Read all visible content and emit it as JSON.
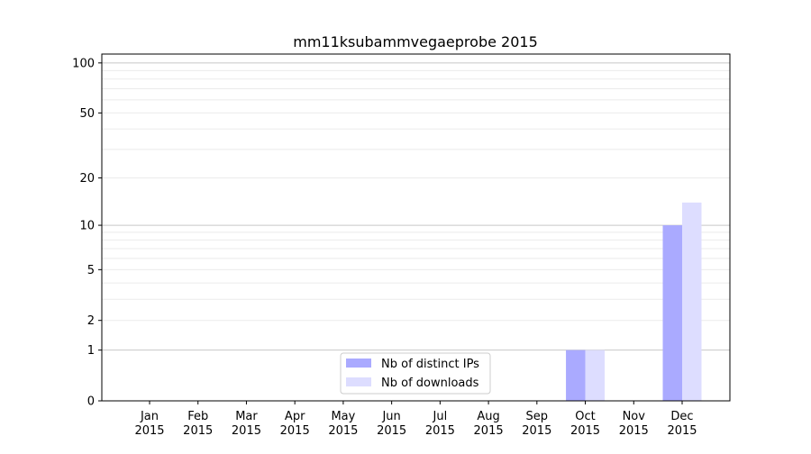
{
  "chart_data": {
    "type": "bar",
    "title": "mm11ksubammvegaeprobe 2015",
    "xlabel": "",
    "ylabel": "",
    "yscale": "symlog",
    "ylim": [
      0,
      113
    ],
    "yticks": [
      0,
      1,
      2,
      5,
      10,
      20,
      50,
      100
    ],
    "ytick_labels": [
      "0",
      "1",
      "2",
      "5",
      "10",
      "20",
      "50",
      "100"
    ],
    "grid": true,
    "legend_position": "bottom-center",
    "categories": [
      "Jan\n2015",
      "Feb\n2015",
      "Mar\n2015",
      "Apr\n2015",
      "May\n2015",
      "Jun\n2015",
      "Jul\n2015",
      "Aug\n2015",
      "Sep\n2015",
      "Oct\n2015",
      "Nov\n2015",
      "Dec\n2015"
    ],
    "series": [
      {
        "name": "Nb of distinct IPs",
        "color": "#aaaaff",
        "values": [
          0,
          0,
          0,
          0,
          0,
          0,
          0,
          0,
          0,
          1,
          0,
          10
        ]
      },
      {
        "name": "Nb of downloads",
        "color": "#ddddff",
        "values": [
          0,
          0,
          0,
          0,
          0,
          0,
          0,
          0,
          0,
          1,
          0,
          14
        ]
      }
    ]
  }
}
